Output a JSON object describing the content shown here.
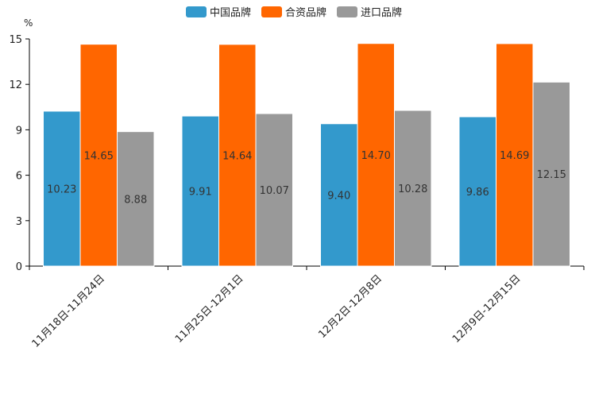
{
  "chart_data": {
    "type": "bar",
    "title": "",
    "ylabel": "%",
    "xlabel": "",
    "ylim": [
      0,
      15
    ],
    "yticks": [
      0,
      3,
      6,
      9,
      12,
      15
    ],
    "categories": [
      "11月18日-11月24日",
      "11月25日-12月1日",
      "12月2日-12月8日",
      "12月9日-12月15日"
    ],
    "series": [
      {
        "name": "中国品牌",
        "color": "#3399cc",
        "values": [
          10.23,
          9.91,
          9.4,
          9.86
        ]
      },
      {
        "name": "合资品牌",
        "color": "#ff6600",
        "values": [
          14.65,
          14.64,
          14.7,
          14.69
        ]
      },
      {
        "name": "进口品牌",
        "color": "#999999",
        "values": [
          8.88,
          10.07,
          10.28,
          12.15
        ]
      }
    ],
    "legend_position": "top-center",
    "grid": false
  }
}
